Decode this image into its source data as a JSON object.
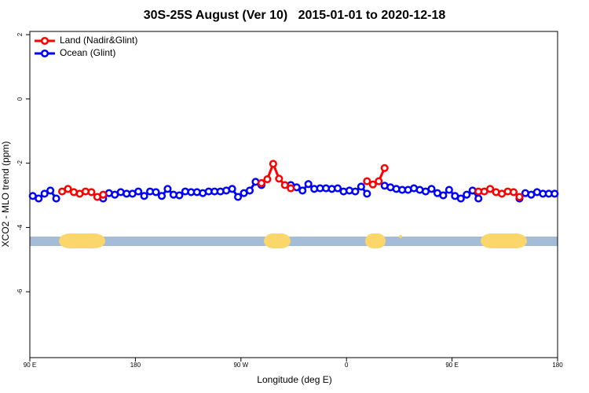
{
  "chart_data": {
    "type": "line",
    "title": "30S-25S August (Ver 10)   2015-01-01 to 2020-12-18",
    "xlabel": "Longitude (deg E)",
    "ylabel": "XCO2 - MLO trend (ppm)",
    "xlim": [
      90,
      540
    ],
    "ylim": [
      -8.05,
      2.1
    ],
    "xticks": [
      {
        "value": 90,
        "label": "90 E"
      },
      180,
      {
        "value": 270,
        "label": "90 W"
      },
      {
        "value": 360,
        "label": "0"
      },
      {
        "value": 450,
        "label": "90 E"
      },
      {
        "value": 540,
        "label": "180"
      }
    ],
    "yticks": [
      2,
      0,
      -2,
      -4,
      -6
    ],
    "legend": "upper left",
    "x": [
      92.5,
      97.5,
      102.5,
      107.5,
      112.5,
      117.5,
      122.5,
      127.5,
      132.5,
      137.5,
      142.5,
      147.5,
      152.5,
      157.5,
      162.5,
      167.5,
      172.5,
      177.5,
      182.5,
      187.5,
      192.5,
      197.5,
      202.5,
      207.5,
      212.5,
      217.5,
      222.5,
      227.5,
      232.5,
      237.5,
      242.5,
      247.5,
      252.5,
      257.5,
      262.5,
      267.5,
      272.5,
      277.5,
      282.5,
      287.5,
      292.5,
      297.5,
      302.5,
      307.5,
      312.5,
      317.5,
      322.5,
      327.5,
      332.5,
      337.5,
      342.5,
      347.5,
      352.5,
      357.5,
      362.5,
      367.5,
      372.5,
      377.5,
      382.5,
      387.5,
      392.5,
      397.5,
      402.5,
      407.5,
      412.5,
      417.5,
      422.5,
      427.5,
      432.5,
      437.5,
      442.5,
      447.5,
      452.5,
      457.5,
      462.5,
      467.5,
      472.5,
      477.5,
      482.5,
      487.5,
      492.5,
      497.5,
      502.5,
      507.5,
      512.5,
      517.5,
      522.5,
      527.5,
      532.5,
      537.5
    ],
    "series": [
      {
        "name": "Land (Nadir&Glint)",
        "color": "#ff0000",
        "values": [
          null,
          null,
          null,
          null,
          null,
          -2.88,
          -2.8,
          -2.9,
          -2.95,
          -2.88,
          -2.9,
          -3.05,
          -2.98,
          null,
          null,
          null,
          null,
          null,
          null,
          null,
          null,
          null,
          null,
          null,
          null,
          null,
          null,
          null,
          null,
          null,
          null,
          null,
          null,
          null,
          null,
          null,
          null,
          null,
          null,
          -2.62,
          -2.5,
          -2.02,
          -2.48,
          -2.68,
          -2.78,
          null,
          null,
          null,
          null,
          null,
          null,
          null,
          null,
          null,
          null,
          null,
          null,
          -2.56,
          -2.66,
          -2.56,
          -2.15,
          null,
          null,
          null,
          null,
          null,
          null,
          null,
          null,
          null,
          null,
          null,
          null,
          null,
          null,
          null,
          -2.88,
          -2.88,
          -2.8,
          -2.9,
          -2.95,
          -2.88,
          -2.9,
          -3.05,
          null,
          null,
          null,
          null,
          null,
          null
        ]
      },
      {
        "name": "Ocean (Glint)",
        "color": "#0000ff",
        "values": [
          -3.02,
          -3.1,
          -2.95,
          -2.85,
          -3.1,
          null,
          null,
          null,
          null,
          null,
          null,
          null,
          -3.1,
          -2.93,
          -2.98,
          -2.9,
          -2.95,
          -2.95,
          -2.88,
          -3.02,
          -2.88,
          -2.9,
          -3.02,
          -2.8,
          -2.98,
          -3.0,
          -2.88,
          -2.9,
          -2.9,
          -2.93,
          -2.88,
          -2.88,
          -2.88,
          -2.85,
          -2.8,
          -3.05,
          -2.93,
          -2.85,
          -2.58,
          -2.68,
          null,
          null,
          null,
          null,
          -2.68,
          -2.75,
          -2.85,
          -2.65,
          -2.8,
          -2.78,
          -2.78,
          -2.8,
          -2.78,
          -2.88,
          -2.85,
          -2.88,
          -2.73,
          -2.95,
          null,
          null,
          -2.7,
          -2.75,
          -2.8,
          -2.83,
          -2.83,
          -2.78,
          -2.83,
          -2.88,
          -2.8,
          -2.93,
          -3.0,
          -2.83,
          -3.02,
          -3.1,
          -2.98,
          -2.85,
          -3.1,
          null,
          null,
          null,
          null,
          null,
          null,
          -3.1,
          -2.93,
          -2.98,
          -2.9,
          -2.95,
          -2.95,
          -2.95
        ]
      }
    ]
  }
}
